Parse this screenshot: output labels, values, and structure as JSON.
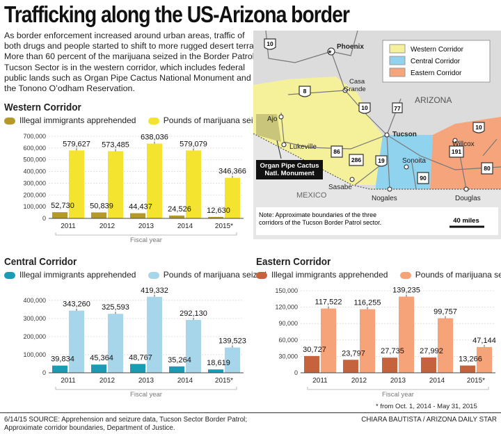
{
  "title": "Trafficking along the US-Arizona border",
  "intro": "As border enforcement increased around urban areas, traffic of both drugs and people started to shift to more rugged desert terrain. More than 60 percent of the marijuana seized in the Border Patrol Tucson Sector is in the western corridor, which includes federal public lands such as Organ Pipe Cactus National Monument and the Tonono O’odham Reservation.",
  "chart_data": [
    {
      "type": "bar",
      "title": "Western Corridor",
      "categories": [
        "2011",
        "2012",
        "2013",
        "2014",
        "2015*"
      ],
      "series": [
        {
          "name": "Illegal immigrants apprehended",
          "values": [
            52730,
            50839,
            44437,
            24526,
            12630
          ],
          "labels": [
            "52,730",
            "50,839",
            "44,437",
            "24,526",
            "12,630"
          ],
          "color": "#b59a2b"
        },
        {
          "name": "Pounds of marijuana seized",
          "values": [
            579627,
            573485,
            638036,
            579079,
            346366
          ],
          "labels": [
            "579,627",
            "573,485",
            "638,036",
            "579,079",
            "346,366"
          ],
          "color": "#f4e430"
        }
      ],
      "yticks": [
        0,
        100000,
        200000,
        300000,
        400000,
        500000,
        600000,
        700000
      ],
      "ytick_labels": [
        "0",
        "100,000",
        "200,000",
        "300,000",
        "400,000",
        "500,000",
        "600,000",
        "700,000"
      ],
      "ylim": [
        0,
        700000
      ],
      "xlabel": "Fiscal year"
    },
    {
      "type": "bar",
      "title": "Central Corridor",
      "categories": [
        "2011",
        "2012",
        "2013",
        "2014",
        "2015*"
      ],
      "series": [
        {
          "name": "Illegal immigrants apprehended",
          "values": [
            39834,
            45364,
            48767,
            35264,
            18619
          ],
          "labels": [
            "39,834",
            "45,364",
            "48,767",
            "35,264",
            "18,619"
          ],
          "color": "#1b9bb4"
        },
        {
          "name": "Pounds of marijuana seized",
          "values": [
            343260,
            325593,
            419332,
            292130,
            139523
          ],
          "labels": [
            "343,260",
            "325,593",
            "419,332",
            "292,130",
            "139,523"
          ],
          "color": "#a7d6ea"
        }
      ],
      "yticks": [
        0,
        100000,
        200000,
        300000,
        400000
      ],
      "ytick_labels": [
        "0",
        "100,000",
        "200,000",
        "300,000",
        "400,000"
      ],
      "ylim": [
        0,
        430000
      ],
      "xlabel": "Fiscal year"
    },
    {
      "type": "bar",
      "title": "Eastern Corridor",
      "categories": [
        "2011",
        "2012",
        "2013",
        "2014",
        "2015*"
      ],
      "series": [
        {
          "name": "Illegal immigrants apprehended",
          "values": [
            30727,
            23797,
            27735,
            27992,
            13266
          ],
          "labels": [
            "30,727",
            "23,797",
            "27,735",
            "27,992",
            "13,266"
          ],
          "color": "#c4633e"
        },
        {
          "name": "Pounds of marijuana seized",
          "values": [
            117522,
            116255,
            139235,
            99757,
            47144
          ],
          "labels": [
            "117,522",
            "116,255",
            "139,235",
            "99,757",
            "47,144"
          ],
          "color": "#f7a37a"
        }
      ],
      "yticks": [
        0,
        30000,
        60000,
        90000,
        120000,
        150000
      ],
      "ytick_labels": [
        "0",
        "30,000",
        "60,000",
        "90,000",
        "120,000",
        "150,000"
      ],
      "ylim": [
        0,
        150000
      ],
      "xlabel": "Fiscal year"
    }
  ],
  "map": {
    "legend": [
      {
        "label": "Western Corridor",
        "color": "#f5f19b"
      },
      {
        "label": "Central Corridor",
        "color": "#8fd3ef"
      },
      {
        "label": "Eastern Corridor",
        "color": "#f5a47c"
      }
    ],
    "cities": {
      "phoenix": "Phoenix",
      "casa_grande": "Casa\nGrande",
      "ajo": "Ajo",
      "tucson": "Tucson",
      "lukeville": "Lukeville",
      "sonoita": "Sonoita",
      "willcox": "Willcox",
      "sasabe": "Sasabe",
      "nogales": "Nogales",
      "douglas": "Douglas"
    },
    "highways": [
      "10",
      "8",
      "10",
      "77",
      "10",
      "86",
      "286",
      "19",
      "90",
      "191",
      "80"
    ],
    "state_label": "ARIZONA",
    "country_label": "MEXICO",
    "callout": "Organ Pipe Cactus\nNatl. Monument",
    "note": "Note: Approximate boundaries of the three\ncorridors of the Tucson Border Patrol sector.",
    "scale": "40 miles"
  },
  "footnote": "* from Oct. 1, 2014 - May 31, 2015",
  "source": "6/14/15  SOURCE: Apprehension and seizure data, Tucson Sector Border Patrol;\nApproximate corridor boundaries, Department of Justice.",
  "credit": "CHIARA BAUTISTA / ARIZONA DAILY STAR"
}
